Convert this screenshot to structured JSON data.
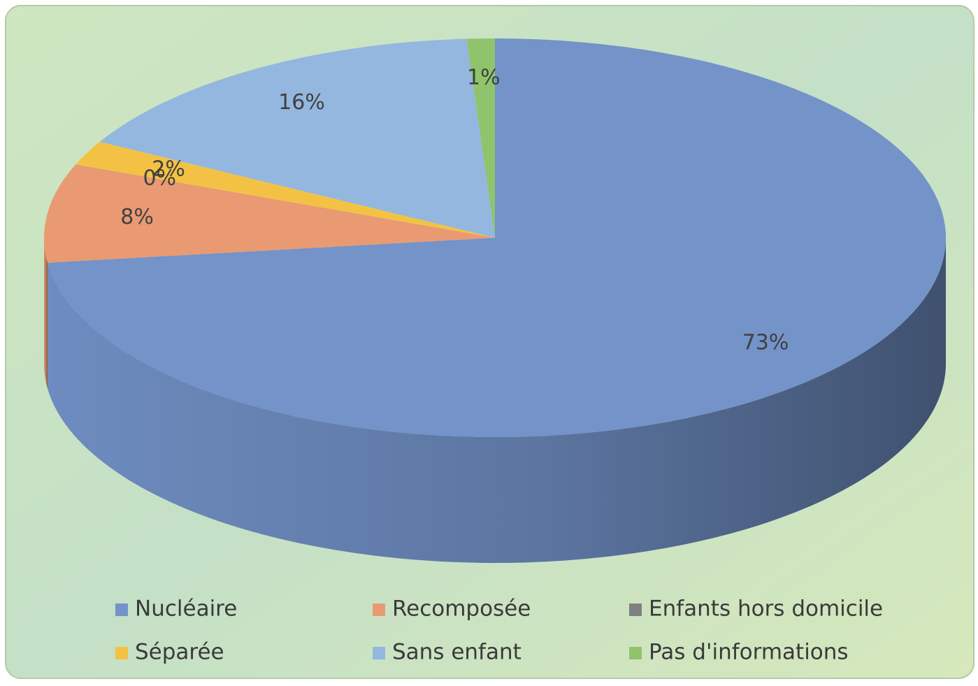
{
  "chart_data": {
    "type": "pie",
    "categories": [
      "Nucléaire",
      "Recomposée",
      "Enfants hors domicile",
      "Séparée",
      "Sans enfant",
      "Pas d'informations"
    ],
    "values": [
      73,
      8,
      0,
      2,
      16,
      1
    ],
    "value_labels": [
      "73%",
      "8%",
      "0%",
      "2%",
      "16%",
      "1%"
    ],
    "colors": [
      "#7393c9",
      "#e99a72",
      "#808080",
      "#f3c245",
      "#93b7df",
      "#8fc46c"
    ],
    "legend": "bottom"
  }
}
